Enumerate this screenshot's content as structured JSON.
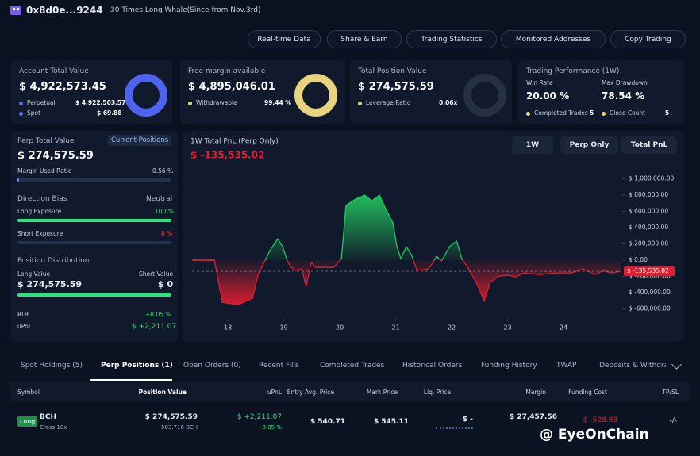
{
  "header": {
    "address": "0x8d0e...9244",
    "tag": "30 Times Long Whale(Since from Nov.3rd)"
  },
  "nav": [
    "Real-time Data",
    "Share & Earn",
    "Trading Statistics",
    "Monitored Addresses",
    "Copy Trading"
  ],
  "cards": [
    {
      "title": "Account Total Value",
      "value": "$ 4,922,573.45",
      "rows": [
        [
          "Perpetual",
          "$ 4,922,503.57"
        ],
        [
          "Spot",
          "$ 69.88"
        ]
      ]
    },
    {
      "title": "Free margin available",
      "value": "$ 4,895,046.01",
      "rows": [
        [
          "Withdrawable",
          "99.44 %"
        ]
      ]
    },
    {
      "title": "Total Position Value",
      "value": "$ 274,575.59",
      "rows": [
        [
          "Leverage Ratio",
          "0.06x"
        ]
      ]
    }
  ],
  "performance": {
    "title": "Trading Performance (1W)",
    "win_rate_label": "Win Rate",
    "win_rate": "20.00 %",
    "drawdown_label": "Max Drawdown",
    "drawdown": "78.54 %",
    "completed_label": "Completed Trades",
    "completed": "5",
    "close_label": "Close Count",
    "close": "5"
  },
  "perp_panel": {
    "title": "Perp Total Value",
    "button": "Current Positions",
    "value": "$ 274,575.59",
    "margin_label": "Margin Used Ratio",
    "margin": "0.56 %",
    "bias_label": "Direction Bias",
    "bias": "Neutral",
    "long_label": "Long Exposure",
    "long": "100 %",
    "short_label": "Short Exposure",
    "short": "0 %",
    "dist_title": "Position Distribution",
    "long_value_label": "Long Value",
    "short_value_label": "Short Value",
    "long_value": "$ 274,575.59",
    "short_value": "$ 0",
    "roe_label": "ROE",
    "roe": "+8.05 %",
    "upnl_label": "uPnL",
    "upnl": "$ +2,211.07"
  },
  "chart_data": {
    "type": "line",
    "title": "1W Total PnL (Perp Only)",
    "current_label": "$ -135,535.02",
    "controls": [
      "1W",
      "Perp Only",
      "Total PnL"
    ],
    "x": [
      17.36,
      17.76,
      17.9,
      18.18,
      18.44,
      18.54,
      18.61,
      18.75,
      18.89,
      18.98,
      19.06,
      19.12,
      19.21,
      19.32,
      19.4,
      19.49,
      19.57,
      19.89,
      20.03,
      20.11,
      20.28,
      20.45,
      20.57,
      20.71,
      20.82,
      20.95,
      21.02,
      21.09,
      21.19,
      21.28,
      21.38,
      21.59,
      21.73,
      21.82,
      21.96,
      22.09,
      22.18,
      22.3,
      22.44,
      22.58,
      22.69,
      22.84,
      23.01,
      23.15,
      23.29,
      23.57,
      23.86,
      24.14,
      24.35,
      24.57,
      24.71,
      24.85,
      25.02
    ],
    "values": [
      0,
      0,
      -517000,
      -546000,
      -468000,
      -176000,
      -78000,
      117000,
      263000,
      166000,
      0,
      -78000,
      -127000,
      -107000,
      -322000,
      -29000,
      -88000,
      -88000,
      20000,
      673000,
      751000,
      800000,
      731000,
      800000,
      634000,
      459000,
      166000,
      20000,
      166000,
      68000,
      -127000,
      -107000,
      49000,
      -10000,
      166000,
      234000,
      20000,
      -107000,
      -273000,
      -498000,
      -273000,
      -195000,
      -185000,
      -205000,
      -156000,
      -176000,
      -156000,
      -156000,
      -107000,
      -176000,
      -127000,
      -156000,
      -135535.02
    ],
    "color_up": "#22c55e",
    "color_down": "#e11d2e",
    "xlim": [
      17.36,
      25.02
    ],
    "xticks": [
      18,
      19,
      20,
      21,
      22,
      23,
      24
    ],
    "ylim": [
      -700000,
      1200000
    ],
    "yticks": [
      {
        "value": 1000000,
        "label": "$ 1,000,000.00"
      },
      {
        "value": 800000,
        "label": "$ 800,000.00"
      },
      {
        "value": 600000,
        "label": "$ 600,000.00"
      },
      {
        "value": 400000,
        "label": "$ 400,000.00"
      },
      {
        "value": 200000,
        "label": "$ 200,000.00"
      },
      {
        "value": 0,
        "label": "$ 0.00"
      },
      {
        "value": -200000,
        "label": "$ -200,000.00"
      },
      {
        "value": -400000,
        "label": "$ -400,000.00"
      },
      {
        "value": -600000,
        "label": "$ -600,000.00"
      }
    ]
  },
  "tabs": [
    "Spot Holdings (5)",
    "Perp Positions (1)",
    "Open Orders (0)",
    "Recent Fills",
    "Completed Trades",
    "Historical Orders",
    "Funding History",
    "TWAP",
    "Deposits & Withdraw"
  ],
  "active_tab": 1,
  "table": {
    "headers": [
      "Symbol",
      "Position Value",
      "uPnL",
      "Entry Avg. Price",
      "Mark Price",
      "Liq. Price",
      "Margin",
      "Funding Cost",
      "TP/SL"
    ],
    "rows": [
      {
        "side": "Long",
        "symbol": "BCH",
        "mode": "Cross 10x",
        "position_value": "$ 274,575.59",
        "size": "503.716 BCH",
        "upnl": "$ +2,211.07",
        "upnl_pct": "+8.05 %",
        "entry": "$ 540.71",
        "mark": "$ 545.11",
        "liq": "$ -",
        "margin": "$ 27,457.56",
        "funding": "$ -528.93",
        "tpsl": "-/-"
      }
    ]
  },
  "watermark": "@ EyeOnChain"
}
